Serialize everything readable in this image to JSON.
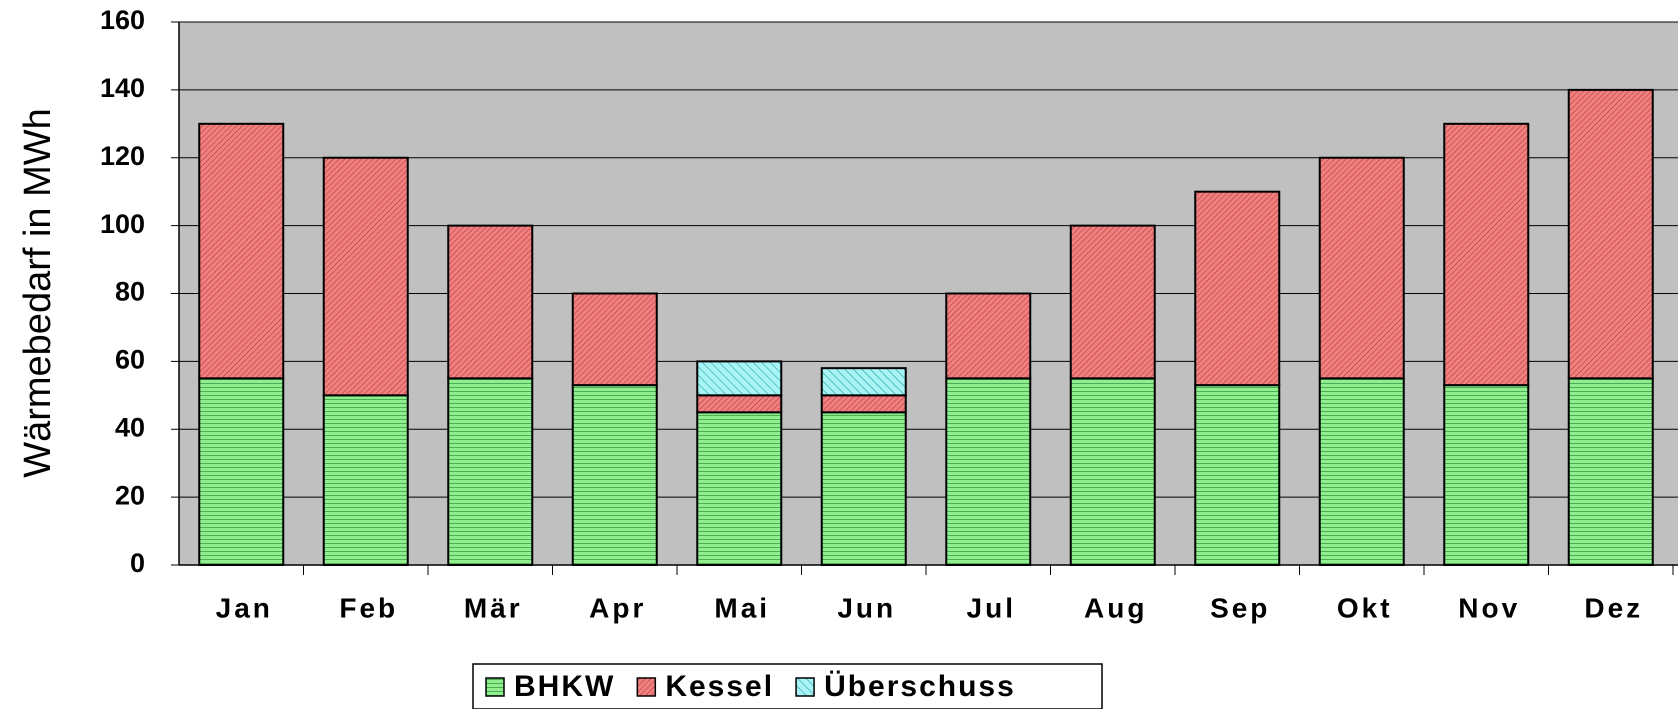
{
  "chart_data": {
    "type": "stacked_bar",
    "y_label": "Wärmebedarf in MWh",
    "categories": [
      "Jan",
      "Feb",
      "Mär",
      "Apr",
      "Mai",
      "Jun",
      "Jul",
      "Aug",
      "Sep",
      "Okt",
      "Nov",
      "Dez"
    ],
    "series": [
      {
        "name": "BHKW",
        "color": "#90ee90",
        "values": [
          55,
          50,
          55,
          53,
          45,
          45,
          55,
          55,
          53,
          55,
          53,
          55
        ]
      },
      {
        "name": "Kessel",
        "color": "#f08080",
        "values": [
          75,
          70,
          45,
          27,
          5,
          5,
          25,
          45,
          57,
          65,
          77,
          85
        ]
      },
      {
        "name": "Überschuss",
        "color": "#a8f4f4",
        "values": [
          0,
          0,
          0,
          0,
          10,
          8,
          0,
          0,
          0,
          0,
          0,
          0
        ]
      }
    ],
    "ylim": [
      0,
      160
    ],
    "yticks": [
      0,
      20,
      40,
      60,
      80,
      100,
      120,
      140,
      160
    ],
    "grid": true,
    "legend": "bottom"
  }
}
